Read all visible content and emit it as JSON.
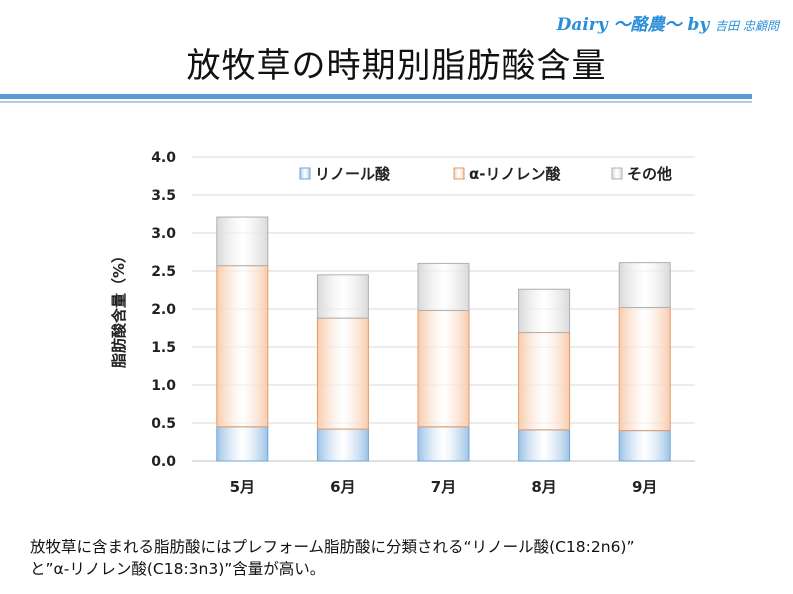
{
  "brand": {
    "name": "Dairy 〜酪農〜 by",
    "author": "吉田 忠顧問"
  },
  "title": "放牧草の時期別脂肪酸含量",
  "caption": {
    "line1": "放牧草に含まれる脂肪酸にはプレフォーム脂肪酸に分類される“リノール酸(C18:2n6)”",
    "line2": "と”α-リノレン酸(C18:3n3)”含量が高い。"
  },
  "colors": {
    "linoleic": "#9dc3e6",
    "linolenic": "#f8cbad",
    "other": "#d9d9d9"
  },
  "chart_data": {
    "type": "bar",
    "stacked": true,
    "title": "",
    "xlabel": "",
    "ylabel": "脂肪酸含量（%）",
    "ylim": [
      0,
      4.0
    ],
    "yticks": [
      "0.0",
      "0.5",
      "1.0",
      "1.5",
      "2.0",
      "2.5",
      "3.0",
      "3.5",
      "4.0"
    ],
    "categories": [
      "5月",
      "6月",
      "7月",
      "8月",
      "9月"
    ],
    "legend_position": "top",
    "grid": true,
    "series": [
      {
        "name": "リノール酸",
        "color_key": "linoleic",
        "values": [
          0.45,
          0.42,
          0.45,
          0.41,
          0.4
        ]
      },
      {
        "name": "α-リノレン酸",
        "color_key": "linolenic",
        "values": [
          2.12,
          1.46,
          1.53,
          1.28,
          1.62
        ]
      },
      {
        "name": "その他",
        "color_key": "other",
        "values": [
          0.64,
          0.57,
          0.62,
          0.57,
          0.59
        ]
      }
    ]
  }
}
